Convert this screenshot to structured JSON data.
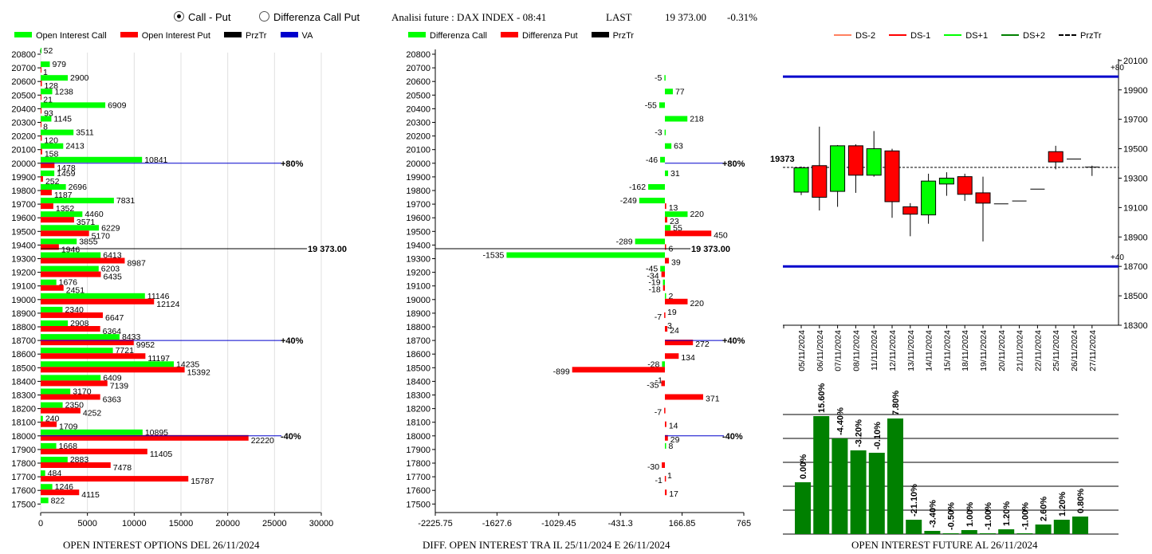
{
  "controls": {
    "radio_call_put": "Call - Put",
    "radio_diff": "Differenza Call Put",
    "header_title": "Analisi future : DAX INDEX - 08:41",
    "last_label": "LAST",
    "last_value": "19 373.00",
    "change": "-0.31%"
  },
  "legends": {
    "left": [
      "Open Interest Call",
      "Open Interest Put",
      "PrzTr",
      "VA"
    ],
    "mid": [
      "Differenza Call",
      "Differenza Put",
      "PrzTr"
    ],
    "right": [
      "DS-2",
      "DS-1",
      "DS+1",
      "DS+2",
      "PrzTr"
    ]
  },
  "colors": {
    "call": "#00ff00",
    "put": "#ff0000",
    "va": "#0000cc",
    "bar": "#008000",
    "ds_minus2": "#ff8060",
    "ds_minus1": "#ff0000",
    "ds_plus1": "#00ff00",
    "ds_plus2": "#008000"
  },
  "captions": {
    "left": "OPEN INTEREST OPTIONS DEL 26/11/2024",
    "mid": "DIFF. OPEN INTEREST TRA IL 25/11/2024 E 26/11/2024",
    "right": "OPEN INTEREST FUTURE AL 26/11/2024"
  },
  "chart_data": [
    {
      "type": "bar",
      "orientation": "horizontal",
      "strikes": [
        20800,
        20700,
        20600,
        20500,
        20400,
        20300,
        20200,
        20100,
        20000,
        19900,
        19800,
        19700,
        19600,
        19500,
        19400,
        19300,
        19200,
        19100,
        19000,
        18900,
        18800,
        18700,
        18600,
        18500,
        18400,
        18300,
        18200,
        18100,
        18000,
        17900,
        17800,
        17700,
        17600,
        17500
      ],
      "series": [
        {
          "name": "Open Interest Call",
          "values": [
            52,
            979,
            2900,
            1238,
            6909,
            1145,
            3511,
            2413,
            10841,
            1459,
            2696,
            7831,
            4460,
            6229,
            3855,
            6413,
            6203,
            1676,
            11146,
            2340,
            2908,
            8433,
            7721,
            14235,
            6409,
            3170,
            2350,
            240,
            10895,
            1668,
            2883,
            484,
            1246,
            822
          ]
        },
        {
          "name": "Open Interest Put",
          "values": [
            null,
            1,
            128,
            21,
            93,
            8,
            120,
            158,
            1478,
            252,
            1187,
            1352,
            3571,
            5170,
            1946,
            8987,
            6435,
            2451,
            12124,
            6647,
            6364,
            9952,
            11197,
            15392,
            7139,
            6363,
            4252,
            1709,
            22220,
            11405,
            7478,
            15787,
            4115,
            null
          ]
        }
      ],
      "xticks": [
        0,
        5000,
        10000,
        15000,
        20000,
        25000,
        30000
      ],
      "xlim": [
        0,
        30000
      ],
      "price_line": {
        "strike": 19373,
        "label": "19 373.00"
      },
      "va_lines": [
        {
          "strike": 20000,
          "label": "+80%"
        },
        {
          "strike": 18700,
          "label": "+40%"
        },
        {
          "strike": 18000,
          "label": "-40%"
        }
      ]
    },
    {
      "type": "bar",
      "orientation": "horizontal",
      "strikes": [
        20800,
        20700,
        20600,
        20500,
        20400,
        20300,
        20200,
        20100,
        20000,
        19900,
        19800,
        19700,
        19600,
        19500,
        19400,
        19300,
        19200,
        19100,
        19000,
        18900,
        18800,
        18700,
        18600,
        18500,
        18400,
        18300,
        18200,
        18100,
        18000,
        17900,
        17800,
        17700,
        17600,
        17500
      ],
      "series": [
        {
          "name": "Differenza Call",
          "values": [
            null,
            null,
            -5,
            77,
            -55,
            218,
            -3,
            63,
            -46,
            31,
            -162,
            -249,
            220,
            55,
            -289,
            -1535,
            -45,
            -19,
            2,
            null,
            null,
            null,
            null,
            -28,
            null,
            null,
            null,
            null,
            null,
            8,
            null,
            null,
            null,
            null
          ]
        },
        {
          "name": "Differenza Put",
          "values": [
            null,
            null,
            null,
            null,
            null,
            null,
            null,
            null,
            null,
            null,
            null,
            13,
            23,
            450,
            6,
            39,
            -34,
            -18,
            220,
            -7,
            24,
            272,
            134,
            -899,
            -35,
            371,
            -7,
            14,
            29,
            null,
            -30,
            -1,
            17,
            null
          ]
        }
      ],
      "extra_labels": [
        {
          "strike": 18900,
          "text": "19"
        },
        {
          "strike": 18800,
          "text": "3"
        },
        {
          "strike": 18400,
          "text": "-1"
        },
        {
          "strike": 17700,
          "text": "1"
        }
      ],
      "xticks": [
        "-2225.75",
        "-1627.6",
        "-1029.45",
        "-431.3",
        "166.85",
        "765"
      ],
      "xlim": [
        -2225.75,
        765
      ],
      "price_line": {
        "strike": 19373,
        "label": "19 373.00"
      },
      "va_lines": [
        {
          "strike": 20000,
          "label": "+80%"
        },
        {
          "strike": 18700,
          "label": "+40%"
        },
        {
          "strike": 18000,
          "label": "-40%"
        }
      ]
    },
    {
      "type": "candlestick",
      "dates": [
        "05/11/2024",
        "06/11/2024",
        "07/11/2024",
        "08/11/2024",
        "11/11/2024",
        "12/11/2024",
        "13/11/2024",
        "14/11/2024",
        "15/11/2024",
        "18/11/2024",
        "19/11/2024",
        "20/11/2024",
        "21/11/2024",
        "22/11/2024",
        "25/11/2024",
        "26/11/2024",
        "27/11/2024"
      ],
      "candles": [
        {
          "o": 19205,
          "h": 19380,
          "l": 19185,
          "c": 19370
        },
        {
          "o": 19385,
          "h": 19650,
          "l": 19080,
          "c": 19170
        },
        {
          "o": 19210,
          "h": 19525,
          "l": 19105,
          "c": 19520
        },
        {
          "o": 19520,
          "h": 19530,
          "l": 19200,
          "c": 19320
        },
        {
          "o": 19320,
          "h": 19620,
          "l": 19310,
          "c": 19500
        },
        {
          "o": 19485,
          "h": 19500,
          "l": 19030,
          "c": 19140
        },
        {
          "o": 19105,
          "h": 19130,
          "l": 18905,
          "c": 19055
        },
        {
          "o": 19050,
          "h": 19330,
          "l": 18990,
          "c": 19280
        },
        {
          "o": 19260,
          "h": 19340,
          "l": 19180,
          "c": 19300
        },
        {
          "o": 19310,
          "h": 19330,
          "l": 19145,
          "c": 19190
        },
        {
          "o": 19200,
          "h": 19310,
          "l": 18870,
          "c": 19130
        },
        {
          "o": 19125,
          "h": 19125,
          "l": 19125,
          "c": 19125
        },
        {
          "o": 19145,
          "h": 19145,
          "l": 19145,
          "c": 19145
        },
        {
          "o": 19225,
          "h": 19225,
          "l": 19225,
          "c": 19225
        },
        {
          "o": 19480,
          "h": 19520,
          "l": 19360,
          "c": 19410
        },
        {
          "o": 19430,
          "h": 19430,
          "l": 19430,
          "c": 19430
        },
        {
          "o": 19375,
          "h": 19385,
          "l": 19315,
          "c": 19375
        }
      ],
      "yticks": [
        20100,
        19900,
        19700,
        19500,
        19300,
        19100,
        18900,
        18700,
        18500,
        18300
      ],
      "ylim": [
        18300,
        20110
      ],
      "bands": [
        {
          "value": 19990,
          "label": "+80"
        },
        {
          "value": 18700,
          "label": "+40"
        }
      ],
      "price_line": {
        "value": 19373,
        "label": "19373"
      }
    },
    {
      "type": "bar",
      "labels": [
        "0.00%",
        "15.60%",
        "-4.40%",
        "-3.20%",
        "-0.10%",
        "7.80%",
        "-21.10%",
        "-3.40%",
        "-0.50%",
        "1.00%",
        "-1.00%",
        "1.20%",
        "-1.00%",
        "2.60%",
        "1.20%",
        "0.80%"
      ],
      "values": [
        65,
        148,
        120,
        105,
        102,
        145,
        18,
        4,
        1,
        5,
        1,
        6,
        1,
        12,
        18,
        22
      ],
      "grid_rows": 5
    }
  ]
}
